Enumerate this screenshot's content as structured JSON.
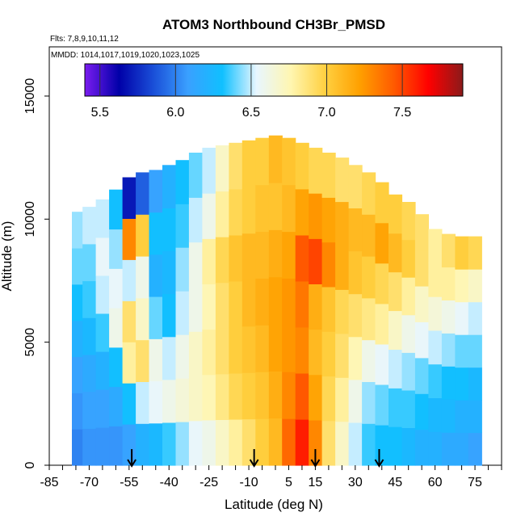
{
  "chart_data": {
    "type": "heatmap",
    "title": "ATOM3 Northbound CH3Br_PMSD",
    "flights_label": "Flts: 7,8,9,10,11,12",
    "dates_label": "MMDD: 1014,1017,1019,1020,1023,1025",
    "xlabel": "Latitude (deg N)",
    "ylabel": "Altitude (m)",
    "xlim": [
      -85,
      85
    ],
    "ylim": [
      0,
      17000
    ],
    "x_ticks": [
      "-85",
      "-70",
      "-55",
      "-40",
      "-25",
      "-10",
      "5",
      "15",
      "30",
      "45",
      "60",
      "75"
    ],
    "x_tick_values": [
      -85,
      -70,
      -55,
      -40,
      -25,
      -10,
      5,
      15,
      30,
      45,
      60,
      75
    ],
    "y_ticks": [
      "0",
      "5000",
      "10000",
      "15000"
    ],
    "y_tick_values": [
      0,
      5000,
      10000,
      15000
    ],
    "colorbar": {
      "range": [
        5.4,
        7.9
      ],
      "ticks": [
        "5.5",
        "6.0",
        "6.5",
        "7.0",
        "7.5"
      ],
      "tick_values": [
        5.5,
        6.0,
        6.5,
        7.0,
        7.5
      ],
      "colors": [
        "#7a1cf0",
        "#0000a8",
        "#1a4fd8",
        "#3aa0ff",
        "#10c0ff",
        "#e8f6ff",
        "#fff6b0",
        "#ffd040",
        "#ffa000",
        "#ff5a00",
        "#ff0000",
        "#8b1a1a"
      ]
    },
    "profile_markers_lat": [
      -54,
      -8,
      15,
      39
    ],
    "grid": false,
    "legend_position": "top",
    "series": [
      {
        "lat": -74,
        "alt_bottom": 0,
        "alt_top": 10300,
        "values": [
          6.0,
          6.05,
          6.1,
          6.2,
          6.3,
          6.4,
          6.45
        ]
      },
      {
        "lat": -70,
        "alt_bottom": 0,
        "alt_top": 10500,
        "values": [
          6.05,
          6.1,
          6.15,
          6.25,
          6.35,
          6.4,
          6.5
        ]
      },
      {
        "lat": -65,
        "alt_bottom": 0,
        "alt_top": 10800,
        "values": [
          6.05,
          6.1,
          6.2,
          6.35,
          6.5,
          6.55,
          6.5
        ]
      },
      {
        "lat": -60,
        "alt_bottom": 0,
        "alt_top": 11200,
        "values": [
          6.05,
          6.15,
          6.3,
          6.6,
          6.55,
          6.45,
          6.3
        ]
      },
      {
        "lat": -55,
        "alt_bottom": 0,
        "alt_top": 11700,
        "values": [
          6.1,
          6.3,
          6.8,
          6.9,
          6.5,
          7.3,
          5.7
        ]
      },
      {
        "lat": -50,
        "alt_bottom": 0,
        "alt_top": 11900,
        "values": [
          6.2,
          6.5,
          6.9,
          6.7,
          6.6,
          7.0,
          5.9
        ]
      },
      {
        "lat": -45,
        "alt_bottom": 0,
        "alt_top": 12000,
        "values": [
          6.25,
          6.55,
          6.6,
          6.4,
          6.2,
          6.3,
          6.1
        ]
      },
      {
        "lat": -40,
        "alt_bottom": 0,
        "alt_top": 12200,
        "values": [
          6.35,
          6.6,
          6.5,
          6.3,
          6.25,
          6.3,
          6.2
        ]
      },
      {
        "lat": -35,
        "alt_bottom": 0,
        "alt_top": 12400,
        "values": [
          6.45,
          6.65,
          6.6,
          6.5,
          6.45,
          6.35,
          6.3
        ]
      },
      {
        "lat": -30,
        "alt_bottom": 0,
        "alt_top": 12700,
        "values": [
          6.55,
          6.7,
          6.7,
          6.6,
          6.6,
          6.5,
          6.4
        ]
      },
      {
        "lat": -25,
        "alt_bottom": 0,
        "alt_top": 12900,
        "values": [
          6.6,
          6.75,
          6.8,
          6.75,
          6.8,
          6.6,
          6.5
        ]
      },
      {
        "lat": -20,
        "alt_bottom": 0,
        "alt_top": 13000,
        "values": [
          6.7,
          6.85,
          6.9,
          6.9,
          6.95,
          6.8,
          6.7
        ]
      },
      {
        "lat": -15,
        "alt_bottom": 0,
        "alt_top": 13100,
        "values": [
          6.8,
          6.95,
          7.0,
          7.0,
          7.05,
          6.95,
          6.9
        ]
      },
      {
        "lat": -10,
        "alt_bottom": 0,
        "alt_top": 13200,
        "values": [
          6.9,
          7.0,
          7.05,
          7.1,
          7.1,
          7.0,
          7.0
        ]
      },
      {
        "lat": -5,
        "alt_bottom": 0,
        "alt_top": 13300,
        "values": [
          7.0,
          7.05,
          7.1,
          7.15,
          7.1,
          7.05,
          7.0
        ]
      },
      {
        "lat": 0,
        "alt_bottom": 0,
        "alt_top": 13400,
        "values": [
          7.1,
          7.15,
          7.2,
          7.2,
          7.15,
          7.05,
          7.1
        ]
      },
      {
        "lat": 5,
        "alt_bottom": 0,
        "alt_top": 13300,
        "values": [
          7.4,
          7.3,
          7.25,
          7.25,
          7.2,
          7.1,
          7.05
        ]
      },
      {
        "lat": 10,
        "alt_bottom": 0,
        "alt_top": 13100,
        "values": [
          7.6,
          7.45,
          7.3,
          7.35,
          7.45,
          7.2,
          7.0
        ]
      },
      {
        "lat": 15,
        "alt_bottom": 0,
        "alt_top": 12900,
        "values": [
          7.3,
          7.2,
          7.1,
          7.15,
          7.5,
          7.25,
          6.95
        ]
      },
      {
        "lat": 20,
        "alt_bottom": 0,
        "alt_top": 12700,
        "values": [
          6.9,
          6.95,
          7.0,
          7.05,
          7.3,
          7.2,
          6.95
        ]
      },
      {
        "lat": 25,
        "alt_bottom": 0,
        "alt_top": 12500,
        "values": [
          6.7,
          6.8,
          6.9,
          6.95,
          7.15,
          7.15,
          6.9
        ]
      },
      {
        "lat": 30,
        "alt_bottom": 0,
        "alt_top": 12200,
        "values": [
          6.5,
          6.6,
          6.75,
          6.9,
          7.05,
          7.1,
          6.9
        ]
      },
      {
        "lat": 35,
        "alt_bottom": 0,
        "alt_top": 11900,
        "values": [
          6.35,
          6.45,
          6.6,
          6.85,
          7.0,
          7.1,
          6.95
        ]
      },
      {
        "lat": 40,
        "alt_bottom": 0,
        "alt_top": 11500,
        "values": [
          6.3,
          6.4,
          6.55,
          6.8,
          6.95,
          7.2,
          7.0
        ]
      },
      {
        "lat": 45,
        "alt_bottom": 0,
        "alt_top": 11000,
        "values": [
          6.3,
          6.35,
          6.5,
          6.7,
          6.9,
          7.1,
          7.0
        ]
      },
      {
        "lat": 50,
        "alt_bottom": 0,
        "alt_top": 10700,
        "values": [
          6.25,
          6.35,
          6.45,
          6.6,
          6.8,
          7.0,
          6.95
        ]
      },
      {
        "lat": 55,
        "alt_bottom": 0,
        "alt_top": 10200,
        "values": [
          6.2,
          6.3,
          6.4,
          6.55,
          6.7,
          6.9,
          6.9
        ]
      },
      {
        "lat": 60,
        "alt_bottom": 0,
        "alt_top": 9600,
        "values": [
          6.2,
          6.25,
          6.35,
          6.5,
          6.65,
          6.8,
          6.8
        ]
      },
      {
        "lat": 65,
        "alt_bottom": 0,
        "alt_top": 9400,
        "values": [
          6.15,
          6.25,
          6.3,
          6.45,
          6.6,
          6.8,
          6.9
        ]
      },
      {
        "lat": 70,
        "alt_bottom": 0,
        "alt_top": 9300,
        "values": [
          6.15,
          6.2,
          6.3,
          6.4,
          6.55,
          6.75,
          7.0
        ]
      },
      {
        "lat": 75,
        "alt_bottom": 0,
        "alt_top": 9300,
        "values": [
          6.1,
          6.2,
          6.25,
          6.4,
          6.5,
          6.7,
          6.95
        ]
      }
    ]
  }
}
